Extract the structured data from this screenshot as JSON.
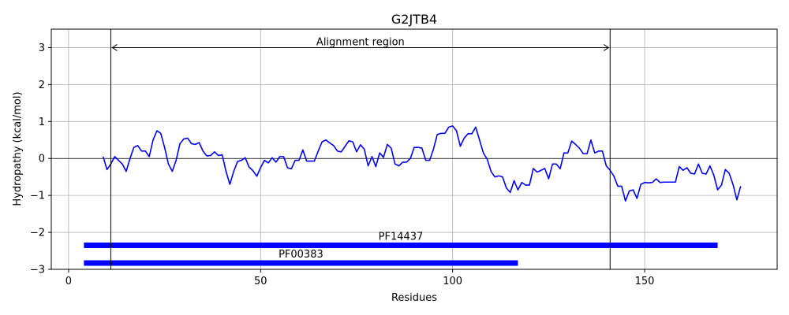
{
  "chart_data": {
    "type": "line",
    "title": "G2JTB4",
    "xlabel": "Residues",
    "ylabel": "Hydropathy (kcal/mol)",
    "xlim": [
      -4.5,
      184.5
    ],
    "ylim": [
      -3,
      3.5
    ],
    "xticks": [
      0,
      50,
      100,
      150
    ],
    "yticks": [
      -3,
      -2,
      -1,
      0,
      1,
      2,
      3
    ],
    "x_tick_labels": [
      "0",
      "50",
      "100",
      "150"
    ],
    "y_tick_labels": [
      "−3",
      "−2",
      "−1",
      "0",
      "1",
      "2",
      "3"
    ],
    "grid": true,
    "series": [
      {
        "color": "#0000ff",
        "x_start": 9,
        "values": [
          0.05,
          -0.3,
          -0.15,
          0.05,
          -0.05,
          -0.15,
          -0.35,
          0.0,
          0.3,
          0.35,
          0.2,
          0.2,
          0.05,
          0.5,
          0.75,
          0.68,
          0.3,
          -0.15,
          -0.35,
          -0.05,
          0.4,
          0.53,
          0.55,
          0.4,
          0.38,
          0.43,
          0.2,
          0.07,
          0.08,
          0.18,
          0.08,
          0.1,
          -0.35,
          -0.7,
          -0.35,
          -0.08,
          -0.05,
          0.02,
          -0.23,
          -0.33,
          -0.48,
          -0.25,
          -0.05,
          -0.12,
          0.02,
          -0.1,
          0.05,
          0.05,
          -0.25,
          -0.28,
          -0.05,
          -0.05,
          0.23,
          -0.07,
          -0.07,
          -0.07,
          0.2,
          0.45,
          0.5,
          0.42,
          0.35,
          0.2,
          0.18,
          0.33,
          0.48,
          0.45,
          0.18,
          0.37,
          0.25,
          -0.2,
          0.05,
          -0.22,
          0.15,
          0.03,
          0.38,
          0.28,
          -0.15,
          -0.2,
          -0.1,
          -0.1,
          0.0,
          0.3,
          0.3,
          0.28,
          -0.05,
          -0.05,
          0.25,
          0.65,
          0.68,
          0.68,
          0.85,
          0.88,
          0.75,
          0.33,
          0.55,
          0.67,
          0.67,
          0.85,
          0.5,
          0.15,
          -0.02,
          -0.35,
          -0.5,
          -0.47,
          -0.5,
          -0.8,
          -0.92,
          -0.6,
          -0.85,
          -0.65,
          -0.72,
          -0.72,
          -0.27,
          -0.37,
          -0.32,
          -0.27,
          -0.55,
          -0.15,
          -0.15,
          -0.28,
          0.15,
          0.15,
          0.47,
          0.38,
          0.28,
          0.13,
          0.13,
          0.5,
          0.15,
          0.2,
          0.2,
          -0.2,
          -0.32,
          -0.48,
          -0.75,
          -0.75,
          -1.15,
          -0.88,
          -0.85,
          -1.08,
          -0.7,
          -0.65,
          -0.66,
          -0.65,
          -0.55,
          -0.65,
          -0.64,
          -0.64,
          -0.64,
          -0.64,
          -0.22,
          -0.32,
          -0.25,
          -0.4,
          -0.42,
          -0.15,
          -0.4,
          -0.42,
          -0.2,
          -0.45,
          -0.85,
          -0.72,
          -0.3,
          -0.4,
          -0.7,
          -1.12,
          -0.75
        ]
      }
    ],
    "vlines": [
      11,
      141
    ],
    "annotation": {
      "label": "Alignment region",
      "x_start": 11,
      "x_end": 141,
      "y": 3
    },
    "domains": [
      {
        "name": "PF14437",
        "start": 4,
        "end": 169,
        "y": -2.35,
        "color": "#0000ff"
      },
      {
        "name": "PF00383",
        "start": 4,
        "end": 117,
        "y": -2.83,
        "color": "#0000ff"
      }
    ]
  }
}
